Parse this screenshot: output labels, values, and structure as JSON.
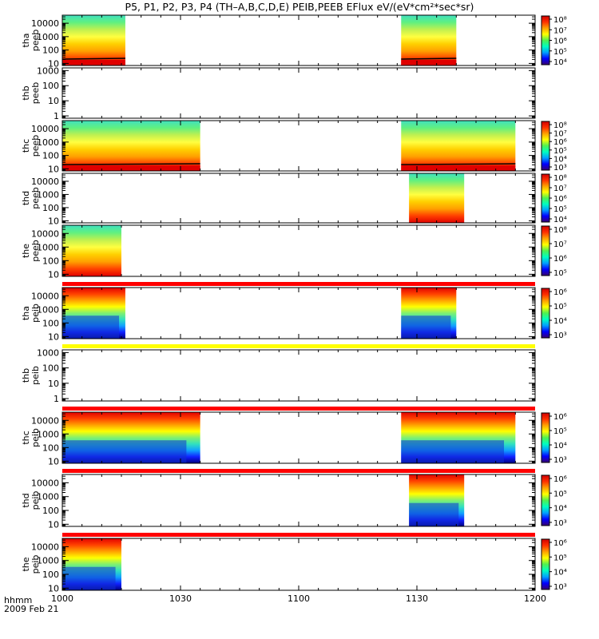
{
  "chart_data": {
    "type": "heatmap",
    "title": "P5, P1, P2, P3, P4 (TH–A,B,C,D,E) PEIB,PEEB EFlux eV/(eV*cm²*sec*sr)",
    "x_label_line1": "hhmm",
    "x_label_line2": "2009 Feb 21",
    "x_ticks": [
      "1000",
      "1030",
      "1100",
      "1130",
      "1200"
    ],
    "x_range": [
      "10:00",
      "12:00"
    ],
    "y_scale": "log",
    "colorscale": [
      "#3a0070",
      "#0000ff",
      "#00a0ff",
      "#00ffc0",
      "#50f050",
      "#ffff00",
      "#ffa000",
      "#ff3000",
      "#d00000"
    ],
    "panels": [
      {
        "probe": "tha",
        "product": "peeb",
        "ylabel": "tha\npeeb",
        "yticks": [
          "10",
          "100",
          "1000",
          "10000"
        ],
        "ylim": [
          7,
          40000
        ],
        "colorbar": [
          "10⁸",
          "10⁷",
          "10⁶",
          "10⁵",
          "10⁴"
        ],
        "coverage": [
          [
            "10:00",
            "10:16"
          ],
          [
            "11:26",
            "11:40"
          ]
        ],
        "top_bar": "",
        "low_band": "red"
      },
      {
        "probe": "thb",
        "product": "peeb",
        "ylabel": "thb\npeeb",
        "yticks": [
          "1",
          "10",
          "100",
          "1000"
        ],
        "ylim": [
          0.7,
          1500
        ],
        "colorbar": [],
        "coverage": [],
        "top_bar": "",
        "low_band": ""
      },
      {
        "probe": "thc",
        "product": "peeb",
        "ylabel": "thc\npeeb",
        "yticks": [
          "10",
          "100",
          "1000",
          "10000"
        ],
        "ylim": [
          7,
          40000
        ],
        "colorbar": [
          "10⁸",
          "10⁷",
          "10⁶",
          "10⁵",
          "10⁴",
          "10³"
        ],
        "coverage": [
          [
            "10:00",
            "10:35"
          ],
          [
            "11:26",
            "11:55"
          ]
        ],
        "top_bar": "",
        "low_band": "red"
      },
      {
        "probe": "thd",
        "product": "peeb",
        "ylabel": "thd\npeeb",
        "yticks": [
          "10",
          "100",
          "1000",
          "10000"
        ],
        "ylim": [
          7,
          40000
        ],
        "colorbar": [
          "10⁸",
          "10⁷",
          "10⁶",
          "10⁵",
          "10⁴"
        ],
        "coverage": [
          [
            "11:28",
            "11:42"
          ]
        ],
        "top_bar": "",
        "low_band": ""
      },
      {
        "probe": "the",
        "product": "peeb",
        "ylabel": "the\npeeb",
        "yticks": [
          "10",
          "100",
          "1000",
          "10000"
        ],
        "ylim": [
          7,
          40000
        ],
        "colorbar": [
          "10⁸",
          "10⁷",
          "10⁶",
          "10⁵"
        ],
        "coverage": [
          [
            "10:00",
            "10:15"
          ]
        ],
        "top_bar": "",
        "low_band": ""
      },
      {
        "probe": "tha",
        "product": "peib",
        "ylabel": "tha\npeib",
        "yticks": [
          "10",
          "100",
          "1000",
          "10000"
        ],
        "ylim": [
          7,
          40000
        ],
        "colorbar": [
          "10⁶",
          "10⁵",
          "10⁴",
          "10³"
        ],
        "coverage": [
          [
            "10:00",
            "10:16"
          ],
          [
            "11:26",
            "11:40"
          ]
        ],
        "top_bar": "red",
        "low_band": ""
      },
      {
        "probe": "thb",
        "product": "peib",
        "ylabel": "thb\npeib",
        "yticks": [
          "1",
          "10",
          "100",
          "1000"
        ],
        "ylim": [
          0.7,
          1500
        ],
        "colorbar": [],
        "coverage": [],
        "top_bar": "yellow",
        "low_band": ""
      },
      {
        "probe": "thc",
        "product": "peib",
        "ylabel": "thc\npeib",
        "yticks": [
          "10",
          "100",
          "1000",
          "10000"
        ],
        "ylim": [
          7,
          40000
        ],
        "colorbar": [
          "10⁶",
          "10⁵",
          "10⁴",
          "10³"
        ],
        "coverage": [
          [
            "10:00",
            "10:35"
          ],
          [
            "11:26",
            "11:55"
          ]
        ],
        "top_bar": "red",
        "low_band": ""
      },
      {
        "probe": "thd",
        "product": "peib",
        "ylabel": "thd\npeib",
        "yticks": [
          "10",
          "100",
          "1000",
          "10000"
        ],
        "ylim": [
          7,
          40000
        ],
        "colorbar": [
          "10⁶",
          "10⁵",
          "10⁴",
          "10³"
        ],
        "coverage": [
          [
            "11:28",
            "11:42"
          ]
        ],
        "top_bar": "red",
        "low_band": ""
      },
      {
        "probe": "the",
        "product": "peib",
        "ylabel": "the\npeib",
        "yticks": [
          "10",
          "100",
          "1000",
          "10000"
        ],
        "ylim": [
          7,
          40000
        ],
        "colorbar": [
          "10⁶",
          "10⁵",
          "10⁴",
          "10³"
        ],
        "coverage": [
          [
            "10:00",
            "10:15"
          ]
        ],
        "top_bar": "red",
        "low_band": ""
      }
    ]
  }
}
